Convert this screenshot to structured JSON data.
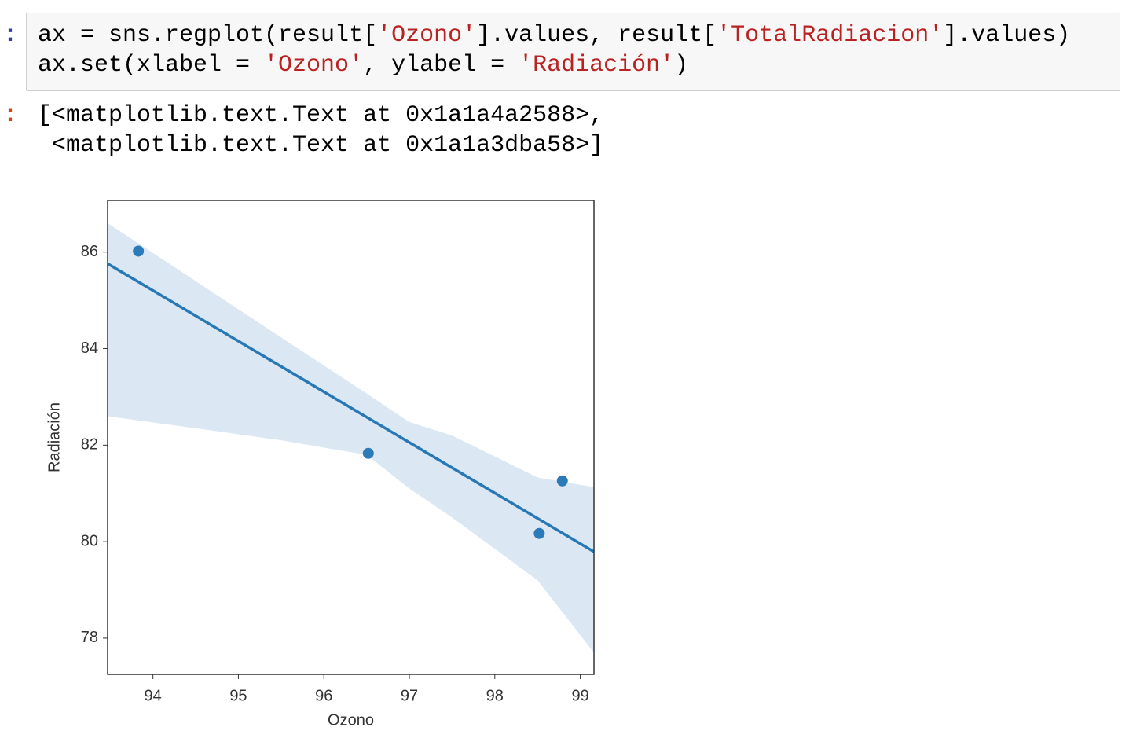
{
  "code_cell": {
    "prompt": ":",
    "prompt_color": "#303f9f",
    "lines": [
      [
        {
          "text": "ax = sns.regplot(result[",
          "color": "#000000"
        },
        {
          "text": "'Ozono'",
          "color": "#ba2121"
        },
        {
          "text": "].values, result[",
          "color": "#000000"
        },
        {
          "text": "'TotalRadiacion'",
          "color": "#ba2121"
        },
        {
          "text": "].values)",
          "color": "#000000"
        }
      ],
      [
        {
          "text": "ax.set(xlabel = ",
          "color": "#000000"
        },
        {
          "text": "'Ozono'",
          "color": "#ba2121"
        },
        {
          "text": ", ylabel = ",
          "color": "#000000"
        },
        {
          "text": "'Radiación'",
          "color": "#ba2121"
        },
        {
          "text": ")",
          "color": "#000000"
        }
      ]
    ]
  },
  "output": {
    "prompt": ":",
    "prompt_color": "#d84315",
    "lines": [
      "[<matplotlib.text.Text at 0x1a1a4a2588>,",
      " <matplotlib.text.Text at 0x1a1a3dba58>]"
    ]
  },
  "chart_data": {
    "type": "scatter",
    "xlabel": "Ozono",
    "ylabel": "Radiación",
    "x": [
      93.83,
      96.52,
      98.52,
      98.79
    ],
    "y": [
      86.02,
      81.83,
      80.17,
      81.26
    ],
    "color": "#2b7bba",
    "regression": {
      "x": [
        93.47,
        99.16
      ],
      "y": [
        85.76,
        79.79
      ],
      "color": "#2878b5"
    },
    "ci": {
      "x": [
        93.47,
        94.5,
        95.5,
        96.5,
        97,
        97.5,
        98.5,
        99.16
      ],
      "upper": [
        86.6,
        85.4,
        84.23,
        83.07,
        82.48,
        82.2,
        81.33,
        81.13
      ],
      "lower": [
        82.6,
        82.35,
        82.1,
        81.8,
        81.1,
        80.5,
        79.2,
        77.7
      ],
      "color": "#dbe8f4"
    },
    "xlim": [
      93.47,
      99.16
    ],
    "ylim": [
      77.25,
      87.07
    ],
    "xticks": [
      94,
      95,
      96,
      97,
      98,
      99
    ],
    "yticks": [
      78,
      80,
      82,
      84,
      86
    ]
  }
}
